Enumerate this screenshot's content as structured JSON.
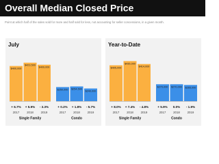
{
  "header": {
    "title": "Overall Median Closed Price",
    "subtitle": "Point at which half of the sales sold for more and half sold for less, not accounting for seller concessions, in a given month."
  },
  "chart_data": [
    {
      "type": "bar",
      "title": "July",
      "ylim": [
        150000,
        500000
      ],
      "groups": [
        {
          "name": "Single Family",
          "color": "#fbb040",
          "categories": [
            "2017",
            "2018",
            "2019"
          ],
          "values": [
            400000,
            423500,
            409000
          ],
          "value_labels": [
            "$400,000",
            "$423,500",
            "$409,000"
          ],
          "changes": [
            "+ 6.7%",
            "+ 5.9%",
            "- 3.3%"
          ]
        },
        {
          "name": "Condo",
          "color": "#3b8fe8",
          "categories": [
            "2017",
            "2018",
            "2019"
          ],
          "values": [
            250000,
            254500,
            240000
          ],
          "value_labels": [
            "$250,000",
            "$254,500",
            "$240,000"
          ],
          "changes": [
            "+ 0.2%",
            "+ 1.8%",
            "- 5.7%"
          ]
        }
      ]
    },
    {
      "type": "bar",
      "title": "Year-to-Date",
      "ylim": [
        150000,
        500000
      ],
      "groups": [
        {
          "name": "Single Family",
          "color": "#fbb040",
          "categories": [
            "2017",
            "2018",
            "2019"
          ],
          "values": [
            405000,
            435000,
            414000
          ],
          "value_labels": [
            "$405,000",
            "$435,000",
            "$414,000"
          ],
          "changes": [
            "+ 8.0%",
            "+ 7.4%",
            "- 4.8%"
          ]
        },
        {
          "name": "Condo",
          "color": "#3b8fe8",
          "categories": [
            "2017",
            "2018",
            "2019"
          ],
          "values": [
            270000,
            270000,
            265000
          ],
          "value_labels": [
            "$270,000",
            "$270,000",
            "$265,000"
          ],
          "changes": [
            "+ 5.9%",
            "0.0%",
            "- 1.9%"
          ]
        }
      ]
    }
  ]
}
